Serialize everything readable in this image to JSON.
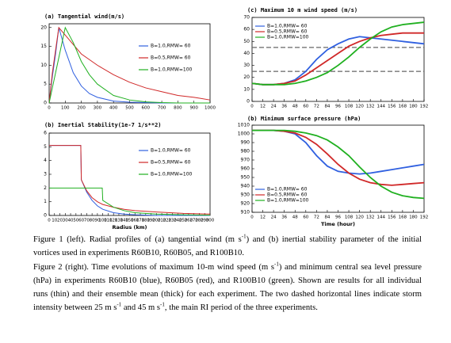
{
  "chart_data": [
    {
      "type": "line",
      "title": "(a) Tangential wind(m/s)",
      "xlim": [
        0,
        1000
      ],
      "xticks": [
        0,
        100,
        200,
        300,
        400,
        500,
        600,
        700,
        800,
        900,
        1000
      ],
      "ylim": [
        0,
        21
      ],
      "yticks": [
        0,
        5,
        10,
        15,
        20
      ],
      "x": [
        0,
        20,
        40,
        60,
        80,
        100,
        150,
        200,
        250,
        300,
        400,
        500,
        600,
        700,
        800,
        900,
        1000
      ],
      "series": [
        {
          "name": "B=1.0,RMW= 60",
          "color": "#3060e0",
          "values": [
            0,
            7,
            13,
            20,
            17,
            14,
            8,
            4.5,
            2.5,
            1.5,
            0.5,
            0.2,
            0.1,
            0,
            0,
            0,
            0
          ]
        },
        {
          "name": "B=0.5,RMW= 60",
          "color": "#d02828",
          "values": [
            0,
            8,
            14,
            20,
            19,
            18,
            15.5,
            13,
            11.5,
            10,
            7.5,
            5.5,
            4,
            3,
            2,
            1.5,
            0.8
          ]
        },
        {
          "name": "B=1.0,RMW=100",
          "color": "#20b020",
          "values": [
            0,
            4,
            8,
            12,
            16,
            20,
            16,
            11,
            7.5,
            5,
            2,
            0.8,
            0.3,
            0.1,
            0,
            0,
            0
          ]
        }
      ]
    },
    {
      "type": "line",
      "title": "(b) Inertial Stability(1e-7 1/s**2)",
      "xlabel": "Radius (km)",
      "xlim": [
        0,
        300
      ],
      "xticks": [
        0,
        10,
        20,
        30,
        40,
        50,
        60,
        70,
        80,
        90,
        100,
        110,
        120,
        130,
        140,
        150,
        160,
        170,
        180,
        190,
        200,
        210,
        220,
        230,
        240,
        250,
        260,
        270,
        280,
        290,
        300
      ],
      "ylim": [
        0,
        6
      ],
      "yticks": [
        0,
        1,
        2,
        3,
        4,
        5,
        6
      ],
      "series": [
        {
          "name": "B=1.0,RMW= 60",
          "color": "#3060e0",
          "x": [
            0,
            59,
            60,
            70,
            80,
            90,
            100,
            120,
            140,
            160,
            200,
            250,
            300
          ],
          "values": [
            5.1,
            5.1,
            2.6,
            1.7,
            1.1,
            0.7,
            0.45,
            0.2,
            0.1,
            0.05,
            0,
            0,
            0
          ]
        },
        {
          "name": "B=0.5,RMW= 60",
          "color": "#d02828",
          "x": [
            0,
            59,
            60,
            70,
            80,
            90,
            100,
            120,
            140,
            160,
            200,
            250,
            300
          ],
          "values": [
            5.1,
            5.1,
            2.6,
            1.8,
            1.3,
            1.0,
            0.8,
            0.6,
            0.45,
            0.35,
            0.25,
            0.15,
            0.1
          ]
        },
        {
          "name": "B=1.0,RMW=100",
          "color": "#20b020",
          "x": [
            0,
            99,
            100,
            120,
            140,
            160,
            200,
            250,
            300
          ],
          "values": [
            2,
            2,
            1.1,
            0.6,
            0.35,
            0.2,
            0.1,
            0.05,
            0.02
          ]
        }
      ]
    },
    {
      "type": "line",
      "title": "(c) Maximum 10 m wind speed (m/s)",
      "xlim": [
        0,
        192
      ],
      "xticks": [
        0,
        12,
        24,
        36,
        48,
        60,
        72,
        84,
        96,
        108,
        120,
        132,
        144,
        156,
        168,
        180,
        192
      ],
      "ylim": [
        0,
        70
      ],
      "yticks": [
        0,
        10,
        20,
        30,
        40,
        50,
        60,
        70
      ],
      "hlines": [
        25,
        45
      ],
      "x": [
        0,
        12,
        24,
        36,
        48,
        60,
        72,
        84,
        96,
        108,
        120,
        132,
        144,
        156,
        168,
        180,
        192
      ],
      "series": [
        {
          "name": "B=1.0,RMW= 60",
          "color": "#3060e0",
          "values": [
            15,
            14,
            14,
            15,
            18,
            25,
            35,
            43,
            48,
            52,
            54,
            53,
            52,
            51,
            50,
            49,
            48
          ]
        },
        {
          "name": "B=0.5,RMW= 60",
          "color": "#d02828",
          "values": [
            15,
            14,
            14,
            15,
            17,
            22,
            28,
            34,
            40,
            46,
            50,
            53,
            55,
            56,
            57,
            57,
            57
          ]
        },
        {
          "name": "B=1.0,RMW=100",
          "color": "#20b020",
          "values": [
            15,
            14,
            14,
            14,
            15,
            17,
            20,
            24,
            30,
            37,
            45,
            52,
            58,
            62,
            64,
            65,
            66
          ]
        }
      ]
    },
    {
      "type": "line",
      "title": "(b) Minimum surface pressure (hPa)",
      "xlabel": "Time (hour)",
      "xlim": [
        0,
        192
      ],
      "xticks": [
        0,
        12,
        24,
        36,
        48,
        60,
        72,
        84,
        96,
        108,
        120,
        132,
        144,
        156,
        168,
        180,
        192
      ],
      "ylim": [
        910,
        1010
      ],
      "yticks": [
        910,
        920,
        930,
        940,
        950,
        960,
        970,
        980,
        990,
        1000,
        1010
      ],
      "x": [
        0,
        12,
        24,
        36,
        48,
        60,
        72,
        84,
        96,
        108,
        120,
        132,
        144,
        156,
        168,
        180,
        192
      ],
      "series": [
        {
          "name": "B=1.0,RMW= 60",
          "color": "#3060e0",
          "values": [
            1004,
            1004,
            1004,
            1003,
            1000,
            990,
            975,
            963,
            957,
            955,
            954,
            955,
            957,
            959,
            961,
            963,
            965
          ]
        },
        {
          "name": "B=0.5,RMW= 60",
          "color": "#d02828",
          "values": [
            1004,
            1004,
            1004,
            1003,
            1001,
            996,
            988,
            977,
            965,
            955,
            948,
            944,
            942,
            941,
            942,
            943,
            944
          ]
        },
        {
          "name": "B=1.0,RMW=100",
          "color": "#20b020",
          "values": [
            1004,
            1004,
            1004,
            1004,
            1003,
            1001,
            998,
            993,
            985,
            975,
            962,
            950,
            940,
            933,
            929,
            927,
            926
          ]
        }
      ]
    }
  ],
  "caption": {
    "figure1": [
      "Figure 1 (left). Radial profiles of (a) tangential wind (m s",
      "-1",
      ") and (b) inertial stability parameter of the initial vortices used in experiments R60B10, R60B05, and R100B10."
    ],
    "figure2": [
      "Figure 2 (right). Time evolutions of maximum 10-m wind speed (m s",
      "-1",
      ") and minimum central sea level pressure (hPa) in experiments R60B10 (blue), R60B05 (red), and R100B10 (green). Shown are results for all individual runs (thin) and their ensemble mean (thick) for each experiment. The two dashed horizontal lines indicate storm intensity between 25 m s",
      "-1",
      " and 45 m s",
      "-1",
      ", the main RI period of the three experiments."
    ]
  }
}
